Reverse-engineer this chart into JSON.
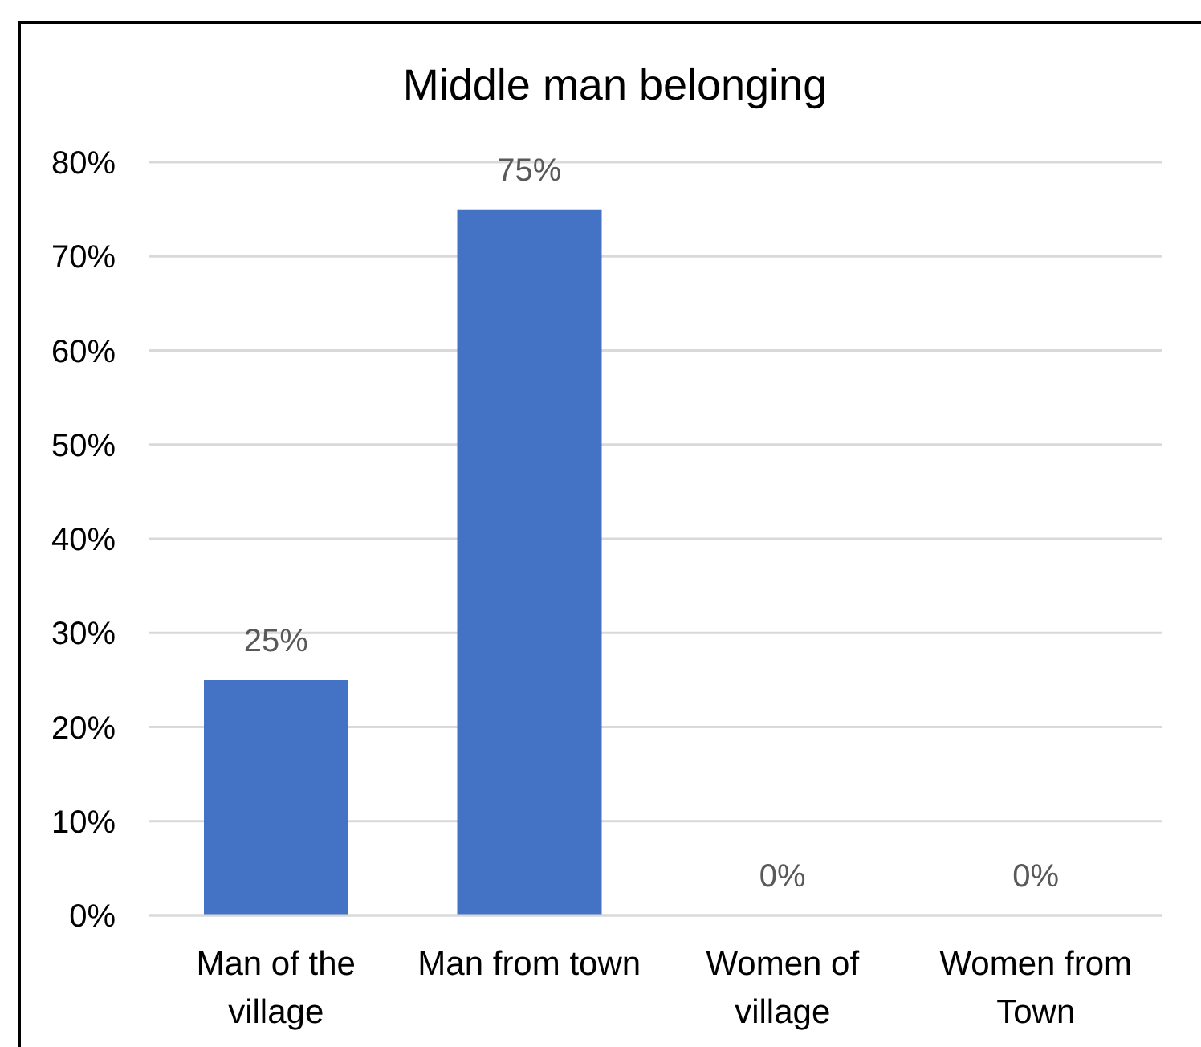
{
  "chart_data": {
    "type": "bar",
    "title": "Middle man belonging",
    "categories": [
      "Man of the village",
      "Man from town",
      "Women of village",
      "Women from Town"
    ],
    "values": [
      25,
      75,
      0,
      0
    ],
    "color": "#4472c4",
    "value_labels": [
      "25%",
      "75%",
      "0%",
      "0%"
    ],
    "ylim": [
      0,
      80
    ],
    "yticks": [
      {
        "value": 0,
        "label": "0%"
      },
      {
        "value": 10,
        "label": "10%"
      },
      {
        "value": 20,
        "label": "20%"
      },
      {
        "value": 30,
        "label": "30%"
      },
      {
        "value": 40,
        "label": "40%"
      },
      {
        "value": 50,
        "label": "50%"
      },
      {
        "value": 60,
        "label": "60%"
      },
      {
        "value": 70,
        "label": "70%"
      },
      {
        "value": 80,
        "label": "80%"
      }
    ],
    "grid": "y"
  }
}
